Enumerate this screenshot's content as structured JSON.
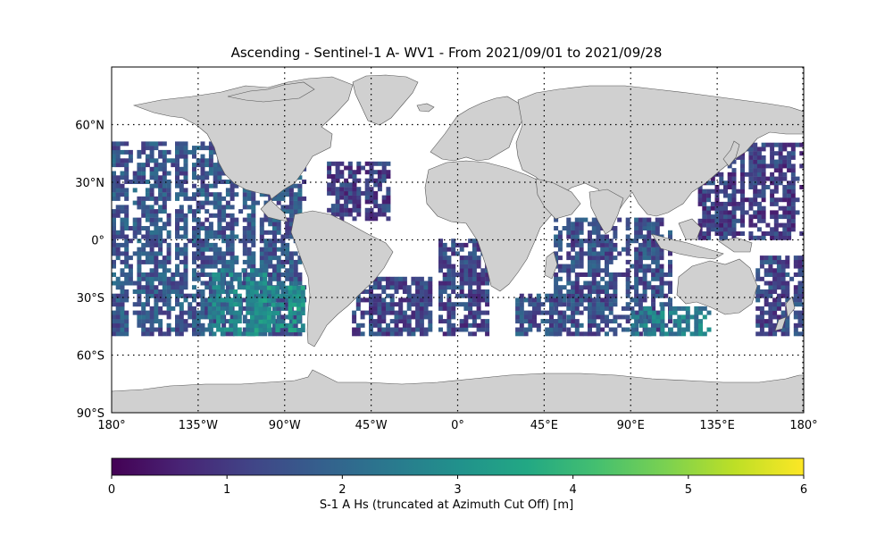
{
  "title": "Ascending - Sentinel-1 A- WV1 - From 2021/09/01 to 2021/09/28",
  "map": {
    "projection": "plate-carree",
    "land_color": "#d0d0d0",
    "coastline_color": "#555555",
    "gridlines": "dotted",
    "lon_ticks": [
      {
        "value": -180,
        "label": "180°"
      },
      {
        "value": -135,
        "label": "135°W"
      },
      {
        "value": -90,
        "label": "90°W"
      },
      {
        "value": -45,
        "label": "45°W"
      },
      {
        "value": 0,
        "label": "0°"
      },
      {
        "value": 45,
        "label": "45°E"
      },
      {
        "value": 90,
        "label": "90°E"
      },
      {
        "value": 135,
        "label": "135°E"
      },
      {
        "value": 180,
        "label": "180°"
      }
    ],
    "lat_ticks": [
      {
        "value": 60,
        "label": "60°N"
      },
      {
        "value": 30,
        "label": "30°N"
      },
      {
        "value": 0,
        "label": "0°"
      },
      {
        "value": -30,
        "label": "30°S"
      },
      {
        "value": -60,
        "label": "60°S"
      },
      {
        "value": -90,
        "label": "90°S"
      }
    ],
    "lon_range": [
      -180,
      180
    ],
    "lat_range": [
      -90,
      90
    ],
    "data_lat_range": [
      -50,
      50
    ],
    "swaths": [
      {
        "lon_min": -180,
        "lon_max": -80,
        "lat_min": -50,
        "lat_max": 50,
        "base": 1.4
      },
      {
        "lon_min": -130,
        "lon_max": -100,
        "lat_min": -50,
        "lat_max": -15,
        "base": 2.4
      },
      {
        "lon_min": -108,
        "lon_max": -80,
        "lat_min": -48,
        "lat_max": -25,
        "base": 2.8
      },
      {
        "lon_min": -68,
        "lon_max": -35,
        "lat_min": 10,
        "lat_max": 40,
        "base": 0.9
      },
      {
        "lon_min": -55,
        "lon_max": -15,
        "lat_min": -50,
        "lat_max": -20,
        "base": 1.1
      },
      {
        "lon_min": -10,
        "lon_max": 15,
        "lat_min": -50,
        "lat_max": 0,
        "base": 1.0
      },
      {
        "lon_min": 30,
        "lon_max": 55,
        "lat_min": -50,
        "lat_max": -28,
        "base": 1.3
      },
      {
        "lon_min": 50,
        "lon_max": 110,
        "lat_min": -50,
        "lat_max": 10,
        "base": 1.2
      },
      {
        "lon_min": 90,
        "lon_max": 130,
        "lat_min": -50,
        "lat_max": -35,
        "base": 2.3
      },
      {
        "lon_min": 125,
        "lon_max": 180,
        "lat_min": 0,
        "lat_max": 50,
        "base": 0.9
      },
      {
        "lon_min": 155,
        "lon_max": 180,
        "lat_min": -50,
        "lat_max": -10,
        "base": 1.1
      }
    ]
  },
  "colorbar": {
    "colormap": "viridis",
    "vmin": 0,
    "vmax": 6,
    "ticks": [
      "0",
      "1",
      "2",
      "3",
      "4",
      "5",
      "6"
    ],
    "label": "S-1 A Hs (truncated at Azimuth Cut Off) [m]"
  }
}
